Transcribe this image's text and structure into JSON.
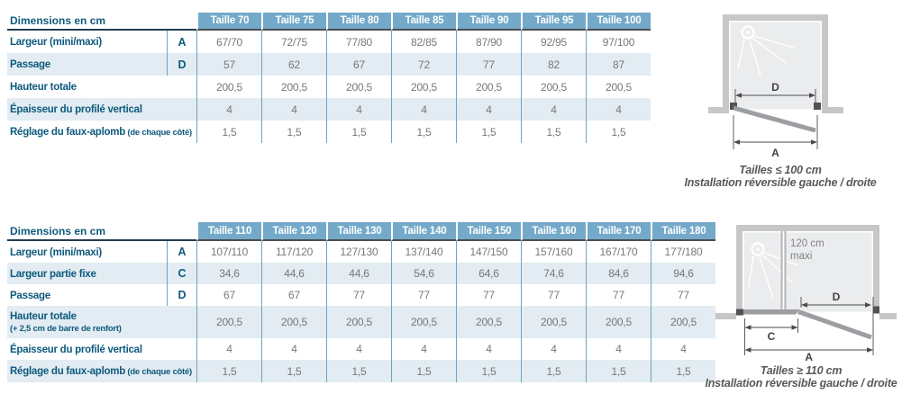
{
  "colors": {
    "header_blue": "#74a9c9",
    "stripe_blue": "#e2ecf2",
    "label_teal": "#0e5a7d",
    "value_grey": "#77787a",
    "line_blue": "#6fa3c4",
    "header_underline_dark": "#4c4d4f",
    "corner_underline_navy": "#233c4f",
    "wall_grey": "#c6c7c9",
    "interior_grey": "#ebeced",
    "door_grey": "#9c9ea1",
    "pivot_grey": "#515254",
    "bar_grey": "#b7b8ba",
    "dim_grey": "#4a4b4d",
    "caption_grey": "#58595b",
    "note_grey": "#828487"
  },
  "table_small": {
    "corner_label": "Dimensions en cm",
    "columns": [
      "Taille 70",
      "Taille 75",
      "Taille 80",
      "Taille 85",
      "Taille 90",
      "Taille 95",
      "Taille 100"
    ],
    "rows": [
      {
        "label": "Largeur (mini/maxi)",
        "letter": "A",
        "values": [
          "67/70",
          "72/75",
          "77/80",
          "82/85",
          "87/90",
          "92/95",
          "97/100"
        ]
      },
      {
        "label": "Passage",
        "letter": "D",
        "values": [
          "57",
          "62",
          "67",
          "72",
          "77",
          "82",
          "87"
        ]
      },
      {
        "label": "Hauteur totale",
        "values": [
          "200,5",
          "200,5",
          "200,5",
          "200,5",
          "200,5",
          "200,5",
          "200,5"
        ]
      },
      {
        "label": "Épaisseur du profilé vertical",
        "values": [
          "4",
          "4",
          "4",
          "4",
          "4",
          "4",
          "4"
        ]
      },
      {
        "label": "Réglage du faux-aplomb",
        "label_suffix": "(de chaque côté)",
        "values": [
          "1,5",
          "1,5",
          "1,5",
          "1,5",
          "1,5",
          "1,5",
          "1,5"
        ]
      }
    ]
  },
  "table_large": {
    "corner_label": "Dimensions en cm",
    "columns": [
      "Taille 110",
      "Taille 120",
      "Taille 130",
      "Taille 140",
      "Taille 150",
      "Taille 160",
      "Taille 170",
      "Taille 180"
    ],
    "rows": [
      {
        "label": "Largeur (mini/maxi)",
        "letter": "A",
        "values": [
          "107/110",
          "117/120",
          "127/130",
          "137/140",
          "147/150",
          "157/160",
          "167/170",
          "177/180"
        ]
      },
      {
        "label": "Largeur partie fixe",
        "letter": "C",
        "values": [
          "34,6",
          "44,6",
          "44,6",
          "54,6",
          "64,6",
          "74,6",
          "84,6",
          "94,6"
        ]
      },
      {
        "label": "Passage",
        "letter": "D",
        "values": [
          "67",
          "67",
          "77",
          "77",
          "77",
          "77",
          "77",
          "77"
        ]
      },
      {
        "label": "Hauteur totale",
        "label_line2": "(+ 2,5 cm de barre de renfort)",
        "values": [
          "200,5",
          "200,5",
          "200,5",
          "200,5",
          "200,5",
          "200,5",
          "200,5",
          "200,5"
        ]
      },
      {
        "label": "Épaisseur du profilé vertical",
        "values": [
          "4",
          "4",
          "4",
          "4",
          "4",
          "4",
          "4",
          "4"
        ]
      },
      {
        "label": "Réglage du faux-aplomb",
        "label_suffix": "(de chaque côté)",
        "values": [
          "1,5",
          "1,5",
          "1,5",
          "1,5",
          "1,5",
          "1,5",
          "1,5",
          "1,5"
        ]
      }
    ]
  },
  "diagram_small": {
    "dim_d": "D",
    "dim_a": "A",
    "caption_size": "Tailles ≤ 100 cm",
    "caption_install": "Installation réversible gauche / droite"
  },
  "diagram_large": {
    "dim_c": "C",
    "dim_d": "D",
    "dim_a": "A",
    "bar_note_line1": "120 cm",
    "bar_note_line2": "maxi",
    "caption_size": "Tailles ≥ 110 cm",
    "caption_install": "Installation réversible gauche / droite"
  }
}
